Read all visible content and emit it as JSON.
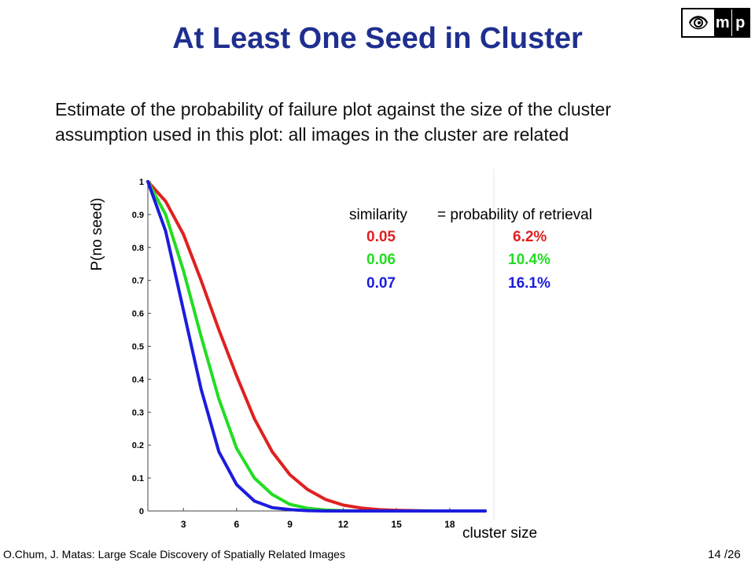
{
  "slide": {
    "title": "At Least One Seed in Cluster",
    "subtitle_line1": "Estimate of the probability of failure plot against the size of the cluster",
    "subtitle_line2": "assumption used in this plot: all images in the cluster are related",
    "logo_text_m": "m",
    "logo_text_p": "p",
    "footer_left": "O.Chum, J. Matas:  Large Scale Discovery of Spatially Related Images",
    "footer_right": "14 /26"
  },
  "legend": {
    "header_similarity": "similarity",
    "header_probability": "= probability  of retrieval",
    "rows": [
      {
        "similarity": "0.05",
        "probability": "6.2%",
        "color": "#e02020"
      },
      {
        "similarity": "0.06",
        "probability": "10.4%",
        "color": "#22dd22"
      },
      {
        "similarity": "0.07",
        "probability": "16.1%",
        "color": "#1c1cdd"
      }
    ]
  },
  "chart_data": {
    "type": "line",
    "ylabel": "P(no seed)",
    "xlabel": "cluster size",
    "xlim": [
      1,
      20
    ],
    "ylim": [
      0,
      1
    ],
    "xticks": [
      3,
      6,
      9,
      12,
      15,
      18
    ],
    "yticks": [
      0,
      0.1,
      0.2,
      0.3,
      0.4,
      0.5,
      0.6,
      0.7,
      0.8,
      0.9,
      1
    ],
    "ytick_labels": [
      "0",
      "0.1",
      "0.2",
      "0.3",
      "0.4",
      "0.5",
      "0.6",
      "0.7",
      "0.8",
      "0.9",
      "1"
    ],
    "grid": false,
    "series": [
      {
        "color": "#e02020",
        "x": [
          1,
          2,
          3,
          4,
          5,
          6,
          7,
          8,
          9,
          10,
          11,
          12,
          13,
          14,
          15,
          16,
          17,
          18,
          19,
          20
        ],
        "values": [
          1.0,
          0.94,
          0.84,
          0.7,
          0.55,
          0.41,
          0.28,
          0.18,
          0.11,
          0.065,
          0.035,
          0.018,
          0.009,
          0.004,
          0.002,
          0.001,
          0,
          0,
          0,
          0
        ]
      },
      {
        "color": "#22dd22",
        "x": [
          1,
          2,
          3,
          4,
          5,
          6,
          7,
          8,
          9,
          10,
          11,
          12,
          13,
          14,
          15,
          16,
          17,
          18,
          19,
          20
        ],
        "values": [
          1.0,
          0.9,
          0.73,
          0.53,
          0.34,
          0.19,
          0.1,
          0.05,
          0.02,
          0.008,
          0.003,
          0.001,
          0,
          0,
          0,
          0,
          0,
          0,
          0,
          0
        ]
      },
      {
        "color": "#1c1cdd",
        "x": [
          1,
          2,
          3,
          4,
          5,
          6,
          7,
          8,
          9,
          10,
          11,
          12,
          13,
          14,
          15,
          16,
          17,
          18,
          19,
          20
        ],
        "values": [
          1.0,
          0.85,
          0.61,
          0.37,
          0.18,
          0.08,
          0.03,
          0.01,
          0.004,
          0.001,
          0,
          0,
          0,
          0,
          0,
          0,
          0,
          0,
          0,
          0
        ]
      }
    ]
  }
}
